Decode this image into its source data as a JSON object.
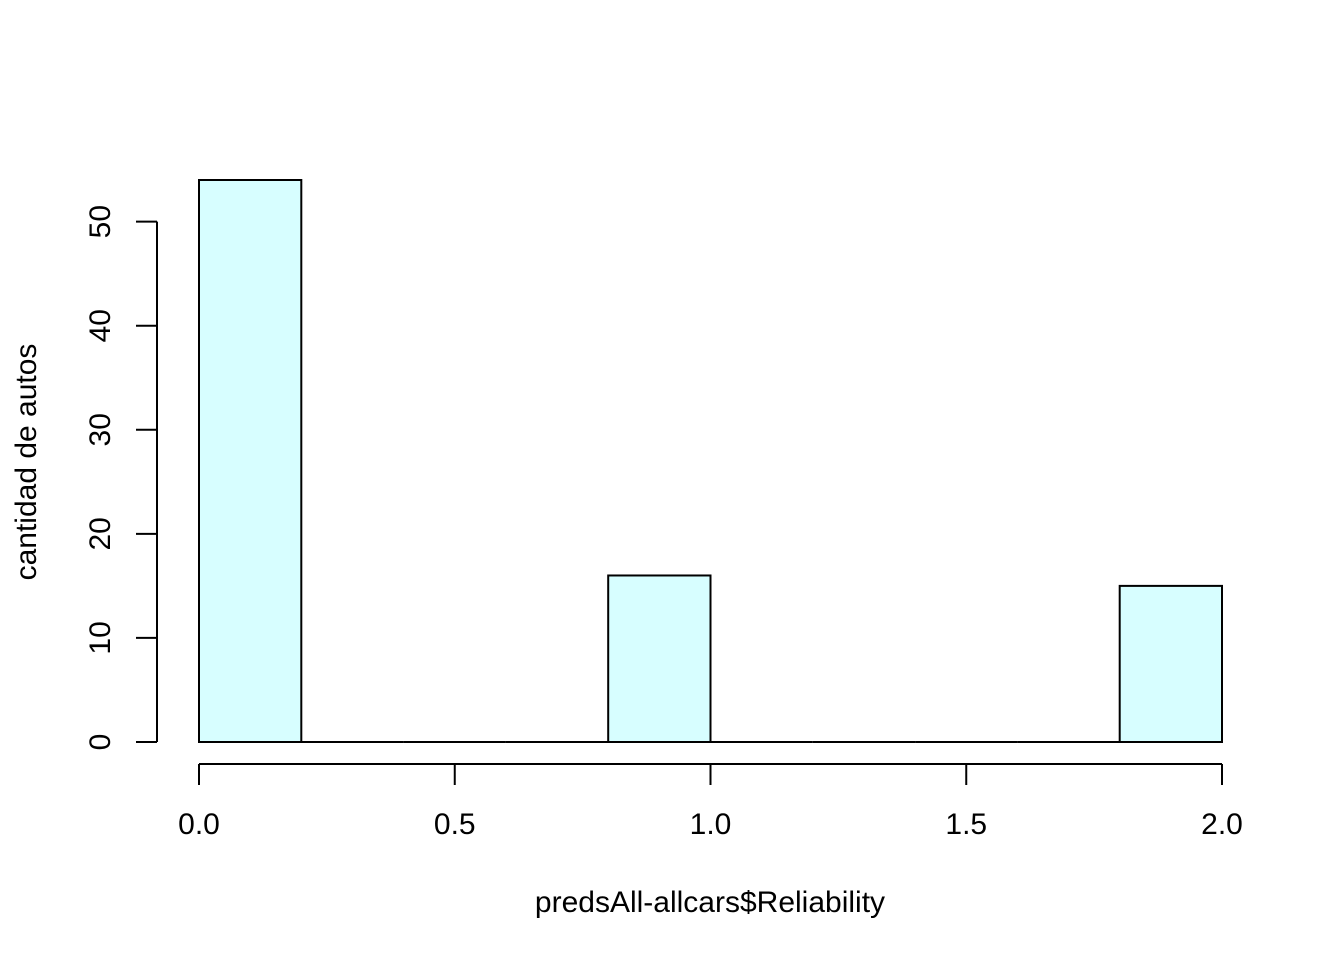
{
  "chart_data": {
    "type": "histogram",
    "title": "",
    "xlabel": "predsAll-allcars$Reliability",
    "ylabel": "cantidad de autos",
    "bin_edges": [
      0.0,
      0.2,
      0.4,
      0.6,
      0.8,
      1.0,
      1.2,
      1.4,
      1.6,
      1.8,
      2.0
    ],
    "counts": [
      54,
      0,
      0,
      0,
      16,
      0,
      0,
      0,
      0,
      15
    ],
    "xlim": [
      0,
      2
    ],
    "ylim": [
      0,
      54
    ],
    "x_ticks": [
      0.0,
      0.5,
      1.0,
      1.5,
      2.0
    ],
    "x_tick_labels": [
      "0.0",
      "0.5",
      "1.0",
      "1.5",
      "2.0"
    ],
    "y_ticks": [
      0,
      10,
      20,
      30,
      40,
      50
    ],
    "y_tick_labels": [
      "0",
      "10",
      "20",
      "30",
      "40",
      "50"
    ],
    "bar_fill": "#d7feff",
    "bar_stroke": "#000000",
    "grid": false,
    "legend": "none"
  }
}
